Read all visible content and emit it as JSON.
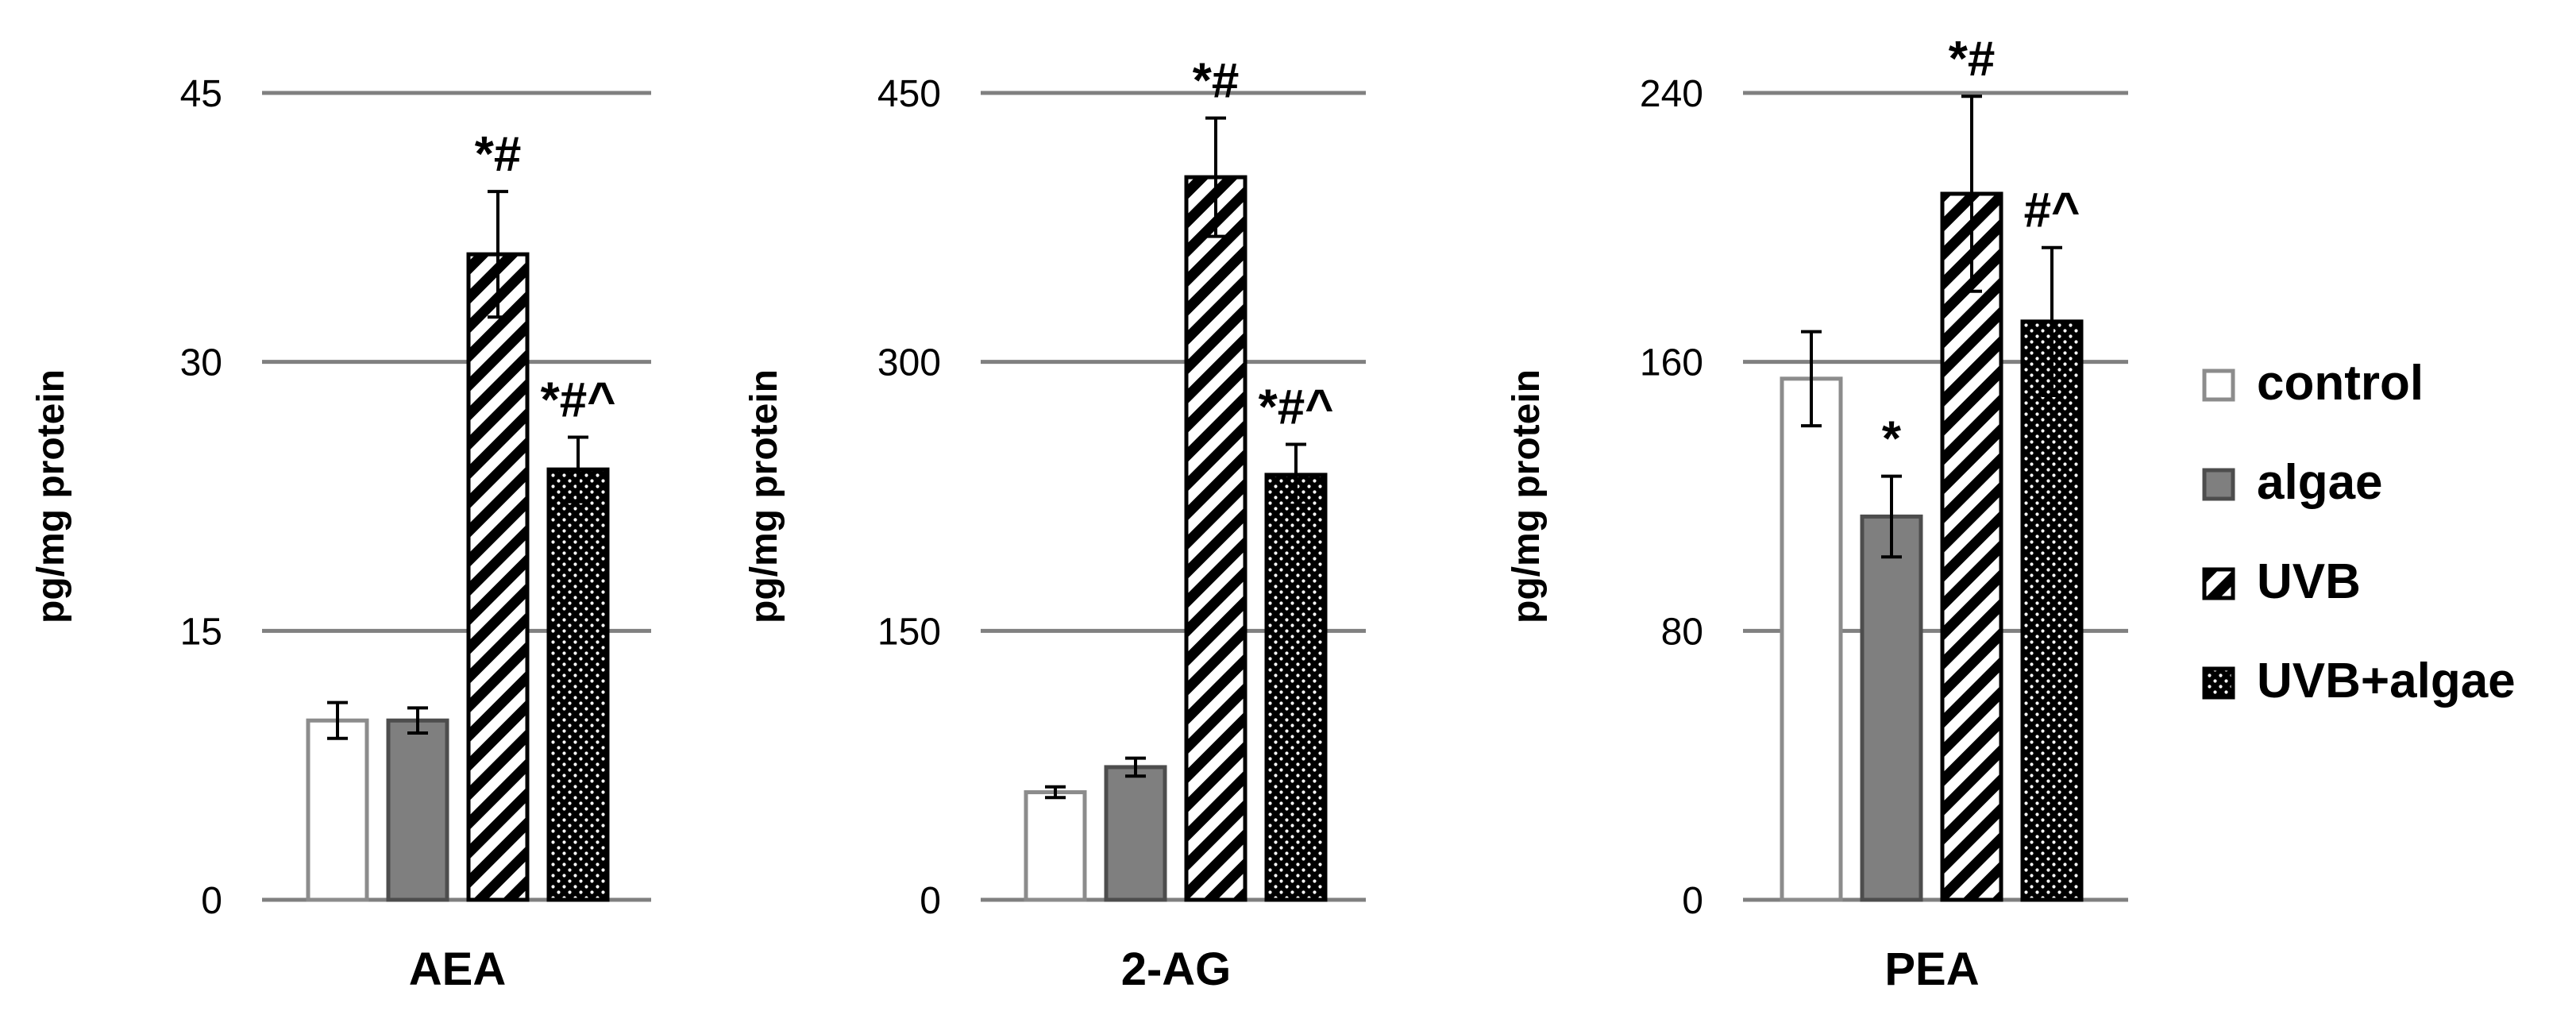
{
  "chart_data": [
    {
      "type": "bar",
      "xlabel": "AEA",
      "ylabel": "pg/mg protein",
      "ylim": [
        0,
        45
      ],
      "yticks": [
        "0",
        "15",
        "30",
        "45"
      ],
      "grid": true,
      "series": [
        {
          "name": "control",
          "value": 10,
          "error": 1,
          "annotation": ""
        },
        {
          "name": "algae",
          "value": 10,
          "error": 0.7,
          "annotation": ""
        },
        {
          "name": "UVB",
          "value": 36,
          "error": 3.5,
          "annotation": "*#"
        },
        {
          "name": "UVB+algae",
          "value": 24,
          "error": 1.8,
          "annotation": "*#^"
        }
      ]
    },
    {
      "type": "bar",
      "xlabel": "2-AG",
      "ylabel": "pg/mg protein",
      "ylim": [
        0,
        450
      ],
      "yticks": [
        "0",
        "150",
        "300",
        "450"
      ],
      "grid": true,
      "series": [
        {
          "name": "control",
          "value": 60,
          "error": 3,
          "annotation": ""
        },
        {
          "name": "algae",
          "value": 74,
          "error": 5,
          "annotation": ""
        },
        {
          "name": "UVB",
          "value": 403,
          "error": 33,
          "annotation": "*#"
        },
        {
          "name": "UVB+algae",
          "value": 237,
          "error": 17,
          "annotation": "*#^"
        }
      ]
    },
    {
      "type": "bar",
      "xlabel": "PEA",
      "ylabel": "pg/mg protein",
      "ylim": [
        0,
        240
      ],
      "yticks": [
        "0",
        "80",
        "160",
        "240"
      ],
      "grid": true,
      "series": [
        {
          "name": "control",
          "value": 155,
          "error": 14,
          "annotation": ""
        },
        {
          "name": "algae",
          "value": 114,
          "error": 12,
          "annotation": "*"
        },
        {
          "name": "UVB",
          "value": 210,
          "error": 29,
          "annotation": "*#"
        },
        {
          "name": "UVB+algae",
          "value": 172,
          "error": 22,
          "annotation": "#^"
        }
      ]
    }
  ],
  "legend": {
    "position": "right",
    "items": [
      {
        "label": "control",
        "pattern": "empty",
        "color": "#ffffff",
        "border": "#8c8c8c"
      },
      {
        "label": "algae",
        "pattern": "solid",
        "color": "#7f7f7f",
        "border": "#4d4d4d"
      },
      {
        "label": "UVB",
        "pattern": "diagonal-stripes",
        "color": "#000000",
        "border": "#000000"
      },
      {
        "label": "UVB+algae",
        "pattern": "dots",
        "color": "#000000",
        "border": "#000000"
      }
    ]
  }
}
